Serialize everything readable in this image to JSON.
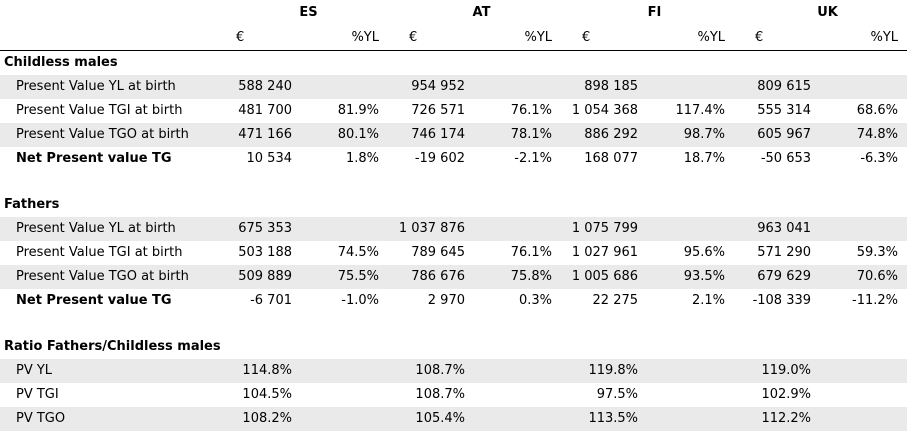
{
  "header": {
    "countries": [
      "ES",
      "AT",
      "FI",
      "UK"
    ],
    "units": [
      "€",
      "%YL",
      "€",
      "%YL",
      "€",
      "%YL",
      "€",
      "%YL"
    ]
  },
  "sections": [
    {
      "title": "Childless males",
      "rows": [
        {
          "label": "Present Value YL at birth",
          "values": [
            "588 240",
            "",
            "954 952",
            "",
            "898 185",
            "",
            "809 615",
            ""
          ]
        },
        {
          "label": "Present Value TGI at birth",
          "values": [
            "481 700",
            "81.9%",
            "726 571",
            "76.1%",
            "1 054 368",
            "117.4%",
            "555 314",
            "68.6%"
          ]
        },
        {
          "label": "Present Value TGO at birth",
          "values": [
            "471 166",
            "80.1%",
            "746 174",
            "78.1%",
            "886 292",
            "98.7%",
            "605 967",
            "74.8%"
          ]
        },
        {
          "label": "Net Present value TG",
          "values": [
            "10 534",
            "1.8%",
            "-19 602",
            "-2.1%",
            "168 077",
            "18.7%",
            "-50 653",
            "-6.3%"
          ]
        }
      ]
    },
    {
      "title": "Fathers",
      "rows": [
        {
          "label": "Present Value YL at birth",
          "values": [
            "675 353",
            "",
            "1 037 876",
            "",
            "1 075 799",
            "",
            "963 041",
            ""
          ]
        },
        {
          "label": "Present Value TGI at birth",
          "values": [
            "503 188",
            "74.5%",
            "789 645",
            "76.1%",
            "1 027 961",
            "95.6%",
            "571 290",
            "59.3%"
          ]
        },
        {
          "label": "Present Value TGO at birth",
          "values": [
            "509 889",
            "75.5%",
            "786 676",
            "75.8%",
            "1 005 686",
            "93.5%",
            "679 629",
            "70.6%"
          ]
        },
        {
          "label": "Net Present value TG",
          "values": [
            "-6 701",
            "-1.0%",
            "2 970",
            "0.3%",
            "22 275",
            "2.1%",
            "-108 339",
            "-11.2%"
          ]
        }
      ]
    },
    {
      "title": "Ratio Fathers/Childless males",
      "rows": [
        {
          "label": "PV YL",
          "values": [
            "114.8%",
            "",
            "108.7%",
            "",
            "119.8%",
            "",
            "119.0%",
            ""
          ]
        },
        {
          "label": "PV TGI",
          "values": [
            "104.5%",
            "",
            "108.7%",
            "",
            "97.5%",
            "",
            "102.9%",
            ""
          ]
        },
        {
          "label": "PV TGO",
          "values": [
            "108.2%",
            "",
            "105.4%",
            "",
            "113.5%",
            "",
            "112.2%",
            ""
          ]
        }
      ]
    }
  ]
}
